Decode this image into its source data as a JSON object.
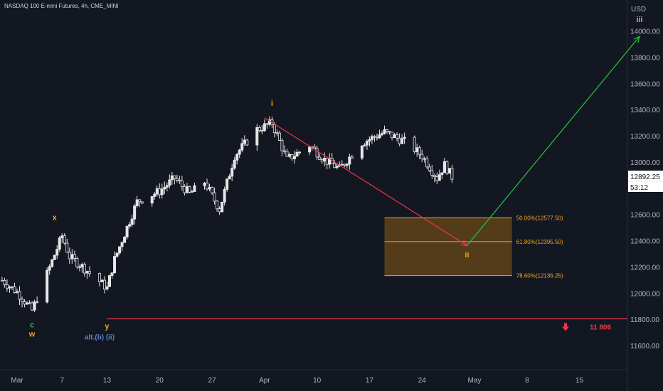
{
  "header": {
    "symbol_line": "NASDAQ 100 E-mini Futures, 4h, CME_MINI",
    "currency": "USD"
  },
  "price_box": {
    "price": "12892.25",
    "countdown": "53:12"
  },
  "colors": {
    "background": "#131722",
    "candle": "#e6e6e6",
    "orange": "#f7a21b",
    "green": "#26c73a",
    "red": "#f23645",
    "blue": "#5b7fc2",
    "axis_text": "#b2b5be"
  },
  "chart_data": {
    "type": "candlestick",
    "timeframe": "4h",
    "y_axis": {
      "unit": "USD",
      "ticks": [
        "14000.00",
        "13800.00",
        "13600.00",
        "13400.00",
        "13200.00",
        "13000.00",
        "12800.00",
        "12600.00",
        "12400.00",
        "12200.00",
        "12000.00",
        "11800.00",
        "11600.00"
      ],
      "range": [
        11450,
        14200
      ]
    },
    "x_axis": {
      "ticks": [
        "Mar",
        "7",
        "13",
        "20",
        "27",
        "Apr",
        "10",
        "17",
        "24",
        "May",
        "8",
        "15"
      ],
      "tick_dates": [
        "2023-03-01",
        "2023-03-07",
        "2023-03-13",
        "2023-03-20",
        "2023-03-27",
        "2023-04-03",
        "2023-04-10",
        "2023-04-17",
        "2023-04-24",
        "2023-05-01",
        "2023-05-08",
        "2023-05-15"
      ]
    },
    "close_path": [
      {
        "date": "2023-02-27",
        "close": 12100
      },
      {
        "date": "2023-03-01",
        "close": 12010
      },
      {
        "date": "2023-03-03",
        "close": 11870
      },
      {
        "date": "2023-03-05",
        "close": 12150
      },
      {
        "date": "2023-03-07",
        "close": 12440
      },
      {
        "date": "2023-03-08",
        "close": 12280
      },
      {
        "date": "2023-03-10",
        "close": 12190
      },
      {
        "date": "2023-03-13",
        "close": 12040
      },
      {
        "date": "2023-03-14",
        "close": 12260
      },
      {
        "date": "2023-03-17",
        "close": 12700
      },
      {
        "date": "2023-03-20",
        "close": 12780
      },
      {
        "date": "2023-03-22",
        "close": 12880
      },
      {
        "date": "2023-03-24",
        "close": 12760
      },
      {
        "date": "2023-03-26",
        "close": 12850
      },
      {
        "date": "2023-03-28",
        "close": 12640
      },
      {
        "date": "2023-03-30",
        "close": 13050
      },
      {
        "date": "2023-04-02",
        "close": 13250
      },
      {
        "date": "2023-04-04",
        "close": 13300
      },
      {
        "date": "2023-04-06",
        "close": 13020
      },
      {
        "date": "2023-04-09",
        "close": 13130
      },
      {
        "date": "2023-04-11",
        "close": 13020
      },
      {
        "date": "2023-04-13",
        "close": 12950
      },
      {
        "date": "2023-04-16",
        "close": 13150
      },
      {
        "date": "2023-04-19",
        "close": 13230
      },
      {
        "date": "2023-04-22",
        "close": 13150
      },
      {
        "date": "2023-04-24",
        "close": 13050
      },
      {
        "date": "2023-04-26",
        "close": 12880
      },
      {
        "date": "2023-04-27",
        "close": 12980
      },
      {
        "date": "2023-04-28",
        "close": 12890
      }
    ],
    "fibonacci_zone": {
      "levels": [
        {
          "label": "50.00%(12577.50)",
          "value": 12577.5
        },
        {
          "label": "61.80%(12395.50)",
          "value": 12395.5
        },
        {
          "label": "78.60%(12136.25)",
          "value": 12136.25
        }
      ],
      "start_date": "2023-04-19",
      "end_date": "2023-05-06"
    },
    "support_line": {
      "value": 11806,
      "label": "11 806",
      "start_date": "2023-03-13"
    },
    "projection_lines": [
      {
        "color": "red",
        "from": {
          "date": "2023-04-03",
          "value": 13340
        },
        "to": {
          "date": "2023-04-30",
          "value": 12365
        }
      },
      {
        "color": "green",
        "from": {
          "date": "2023-04-30",
          "value": 12365
        },
        "to": {
          "date": "2023-05-23",
          "value": 13960
        }
      }
    ],
    "wave_labels": [
      {
        "text": "c",
        "color": "green",
        "date": "2023-03-03",
        "value": 11740
      },
      {
        "text": "w",
        "color": "orange",
        "date": "2023-03-03",
        "value": 11670
      },
      {
        "text": "x",
        "color": "orange",
        "date": "2023-03-06",
        "value": 12560
      },
      {
        "text": "y",
        "color": "orange",
        "date": "2023-03-13",
        "value": 11730
      },
      {
        "text": "alt.(b) (ii)",
        "color": "blue",
        "date": "2023-03-12",
        "value": 11650
      },
      {
        "text": "i",
        "color": "orange",
        "date": "2023-04-04",
        "value": 13430
      },
      {
        "text": "ii",
        "color": "orange",
        "date": "2023-04-30",
        "value": 12275
      },
      {
        "text": "iii",
        "color": "orange",
        "date": "2023-05-23",
        "value": 14070
      }
    ]
  }
}
